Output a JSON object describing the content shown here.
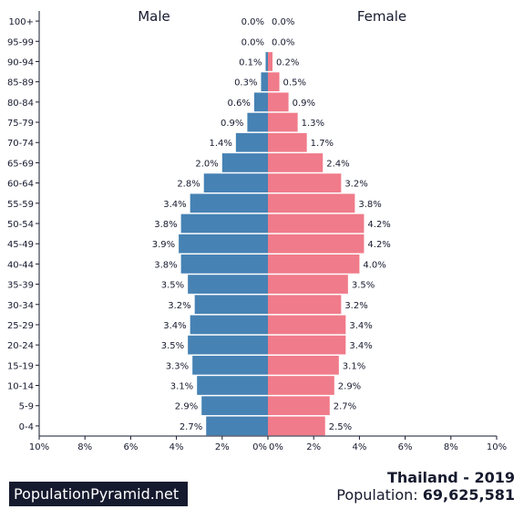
{
  "chart_data": {
    "type": "bar",
    "orientation": "horizontal",
    "categories": [
      "0-4",
      "5-9",
      "10-14",
      "15-19",
      "20-24",
      "25-29",
      "30-34",
      "35-39",
      "40-44",
      "45-49",
      "50-54",
      "55-59",
      "60-64",
      "65-69",
      "70-74",
      "75-79",
      "80-84",
      "85-89",
      "90-94",
      "95-99",
      "100+"
    ],
    "series": [
      {
        "name": "Male",
        "color": "#4682b4",
        "values": [
          2.7,
          2.9,
          3.1,
          3.3,
          3.5,
          3.4,
          3.2,
          3.5,
          3.8,
          3.9,
          3.8,
          3.4,
          2.8,
          2.0,
          1.4,
          0.9,
          0.6,
          0.3,
          0.1,
          0.0,
          0.0
        ],
        "labels": [
          "2.7%",
          "2.9%",
          "3.1%",
          "3.3%",
          "3.5%",
          "3.4%",
          "3.2%",
          "3.5%",
          "3.8%",
          "3.9%",
          "3.8%",
          "3.4%",
          "2.8%",
          "2.0%",
          "1.4%",
          "0.9%",
          "0.6%",
          "0.3%",
          "0.1%",
          "0.0%",
          "0.0%"
        ]
      },
      {
        "name": "Female",
        "color": "#f07b8a",
        "values": [
          2.5,
          2.7,
          2.9,
          3.1,
          3.4,
          3.4,
          3.2,
          3.5,
          4.0,
          4.2,
          4.2,
          3.8,
          3.2,
          2.4,
          1.7,
          1.3,
          0.9,
          0.5,
          0.2,
          0.0,
          0.0
        ],
        "labels": [
          "2.5%",
          "2.7%",
          "2.9%",
          "3.1%",
          "3.4%",
          "3.4%",
          "3.2%",
          "3.5%",
          "4.0%",
          "4.2%",
          "4.2%",
          "3.8%",
          "3.2%",
          "2.4%",
          "1.7%",
          "1.3%",
          "0.9%",
          "0.5%",
          "0.2%",
          "0.0%",
          "0.0%"
        ]
      }
    ],
    "xlim": [
      -10,
      10
    ],
    "xticks_left": [
      "10%",
      "8%",
      "6%",
      "4%",
      "2%",
      "0%"
    ],
    "xticks_right": [
      "0%",
      "2%",
      "4%",
      "6%",
      "8%",
      "10%"
    ],
    "grid": false
  },
  "footer": {
    "brand": "PopulationPyramid.net",
    "title": "Thailand - 2019",
    "population_label": "Population: ",
    "population_value": "69,625,581"
  }
}
